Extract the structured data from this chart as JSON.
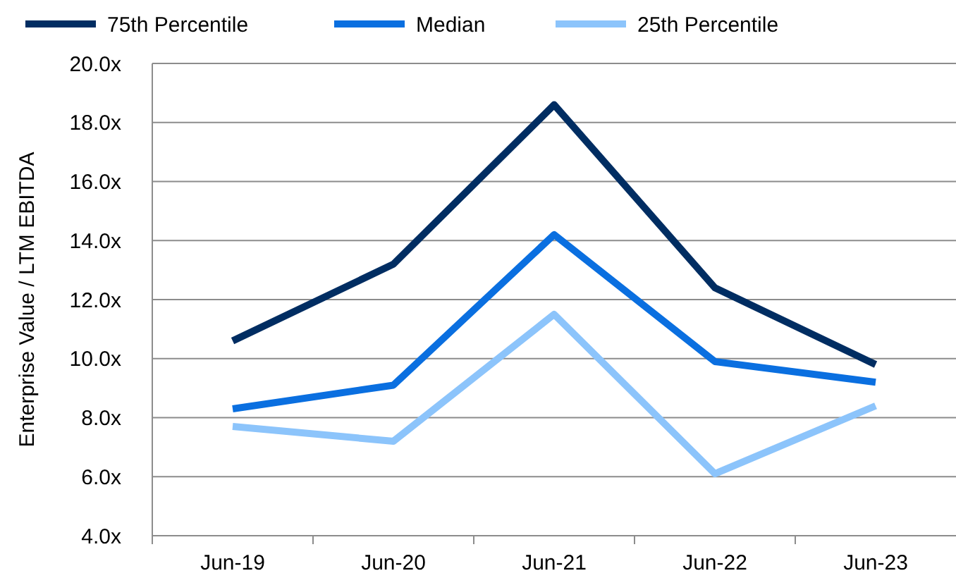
{
  "chart_data": {
    "type": "line",
    "ylabel": "Enterprise Value / LTM EBITDA",
    "categories": [
      "Jun-19",
      "Jun-20",
      "Jun-21",
      "Jun-22",
      "Jun-23"
    ],
    "series": [
      {
        "name": "75th Percentile",
        "color": "#002d62",
        "values": [
          10.6,
          13.2,
          18.6,
          12.4,
          9.8
        ]
      },
      {
        "name": "Median",
        "color": "#0a6fe0",
        "values": [
          8.3,
          9.1,
          14.2,
          9.9,
          9.2
        ]
      },
      {
        "name": "25th Percentile",
        "color": "#8cc4fb",
        "values": [
          7.7,
          7.2,
          11.5,
          6.1,
          8.4
        ]
      }
    ],
    "ylim": [
      4,
      20
    ],
    "yticks": [
      {
        "value": 4,
        "label": "4.0x"
      },
      {
        "value": 6,
        "label": "6.0x"
      },
      {
        "value": 8,
        "label": "8.0x"
      },
      {
        "value": 10,
        "label": "10.0x"
      },
      {
        "value": 12,
        "label": "12.0x"
      },
      {
        "value": 14,
        "label": "14.0x"
      },
      {
        "value": 16,
        "label": "16.0x"
      },
      {
        "value": 18,
        "label": "18.0x"
      },
      {
        "value": 20,
        "label": "20.0x"
      }
    ],
    "grid": "y",
    "legend": "top",
    "marker": "none",
    "line_style": "solid"
  }
}
